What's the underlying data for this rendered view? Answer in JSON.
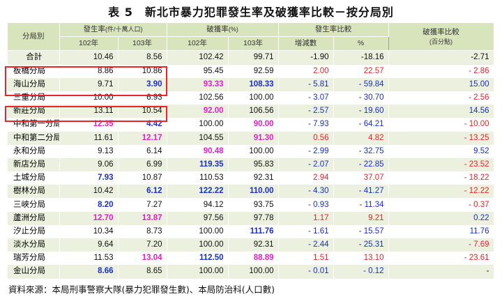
{
  "title": "表 5　新北市暴力犯罪發生率及破獲率比較－按分局別",
  "header": {
    "branch": "分局別",
    "occurrence": "發生率",
    "occurrence_unit": "(件/十萬人口)",
    "clearance": "破獲率",
    "clearance_unit": "(%)",
    "occ_compare": "發生率比較",
    "clear_compare": "破獲率比較",
    "clear_compare_unit": "(百分點)",
    "y102": "102年",
    "y103": "103年",
    "diff": "增減數",
    "pct": "%"
  },
  "colors": {
    "black": "#111111",
    "red": "#e8232a",
    "blue": "#1a2ec8",
    "magenta": "#e61ec8"
  },
  "rows": [
    {
      "name": "合計",
      "o102": "10.46",
      "o102c": "k",
      "o103": "8.56",
      "o103c": "k",
      "c102": "102.42",
      "c102c": "k",
      "c103": "99.71",
      "c103c": "k",
      "d": "-1.90",
      "dc": "k",
      "p": "-18.16",
      "pc": "k",
      "cc": "-2.71",
      "ccc": "k"
    },
    {
      "name": "板橋分局",
      "o102": "8.86",
      "o102c": "k",
      "o103": "10.86",
      "o103c": "k",
      "c102": "95.45",
      "c102c": "k",
      "c103": "92.59",
      "c103c": "k",
      "d": "2.00",
      "dc": "r",
      "p": "22.57",
      "pc": "r",
      "cc": "- 2.86",
      "ccc": "r"
    },
    {
      "name": "海山分局",
      "o102": "9.71",
      "o102c": "k",
      "o103": "3.90",
      "o103c": "b",
      "c102": "93.33",
      "c102c": "m",
      "c103": "108.33",
      "c103c": "b",
      "d": "- 5.81",
      "dc": "b",
      "p": "- 59.84",
      "pc": "b",
      "cc": "15.00",
      "ccc": "b"
    },
    {
      "name": "三重分局",
      "o102": "10.00",
      "o102c": "k",
      "o103": "6.93",
      "o103c": "k",
      "c102": "102.56",
      "c102c": "k",
      "c103": "100.00",
      "c103c": "k",
      "d": "- 3.07",
      "dc": "b",
      "p": "- 30.70",
      "pc": "b",
      "cc": "- 2.56",
      "ccc": "r"
    },
    {
      "name": "新莊分局",
      "o102": "13.11",
      "o102c": "k",
      "o103": "10.54",
      "o103c": "k",
      "c102": "92.00",
      "c102c": "m",
      "c103": "106.56",
      "c103c": "k",
      "d": "- 2.57",
      "dc": "b",
      "p": "- 19.60",
      "pc": "b",
      "cc": "14.56",
      "ccc": "b"
    },
    {
      "name": "中和第一分局",
      "o102": "12.35",
      "o102c": "m",
      "o103": "4.42",
      "o103c": "b",
      "c102": "100.00",
      "c102c": "k",
      "c103": "90.00",
      "c103c": "m",
      "d": "- 7.93",
      "dc": "b",
      "p": "- 64.21",
      "pc": "b",
      "cc": "- 10.00",
      "ccc": "r"
    },
    {
      "name": "中和第二分局",
      "o102": "11.61",
      "o102c": "k",
      "o103": "12.17",
      "o103c": "m",
      "c102": "104.55",
      "c102c": "k",
      "c103": "91.30",
      "c103c": "m",
      "d": "0.56",
      "dc": "r",
      "p": "4.82",
      "pc": "r",
      "cc": "- 13.25",
      "ccc": "r"
    },
    {
      "name": "永和分局",
      "o102": "9.13",
      "o102c": "k",
      "o103": "6.14",
      "o103c": "k",
      "c102": "90.48",
      "c102c": "m",
      "c103": "100.00",
      "c103c": "k",
      "d": "- 2.99",
      "dc": "b",
      "p": "- 32.75",
      "pc": "b",
      "cc": "9.52",
      "ccc": "b"
    },
    {
      "name": "新店分局",
      "o102": "9.06",
      "o102c": "k",
      "o103": "6.99",
      "o103c": "k",
      "c102": "119.35",
      "c102c": "b",
      "c103": "95.83",
      "c103c": "k",
      "d": "- 2.07",
      "dc": "b",
      "p": "- 22.85",
      "pc": "b",
      "cc": "- 23.52",
      "ccc": "r"
    },
    {
      "name": "土城分局",
      "o102": "7.93",
      "o102c": "b",
      "o103": "10.87",
      "o103c": "k",
      "c102": "110.53",
      "c102c": "k",
      "c103": "92.31",
      "c103c": "k",
      "d": "2.94",
      "dc": "r",
      "p": "37.07",
      "pc": "r",
      "cc": "- 18.22",
      "ccc": "r"
    },
    {
      "name": "樹林分局",
      "o102": "10.42",
      "o102c": "k",
      "o103": "6.12",
      "o103c": "b",
      "c102": "122.22",
      "c102c": "b",
      "c103": "110.00",
      "c103c": "b",
      "d": "- 4.30",
      "dc": "b",
      "p": "- 41.27",
      "pc": "b",
      "cc": "- 12.22",
      "ccc": "r"
    },
    {
      "name": "三峽分局",
      "o102": "8.20",
      "o102c": "b",
      "o103": "7.27",
      "o103c": "k",
      "c102": "94.12",
      "c102c": "k",
      "c103": "93.75",
      "c103c": "k",
      "d": "- 0.93",
      "dc": "b",
      "p": "- 11.34",
      "pc": "b",
      "cc": "- 0.37",
      "ccc": "r"
    },
    {
      "name": "蘆洲分局",
      "o102": "12.70",
      "o102c": "m",
      "o103": "13.87",
      "o103c": "m",
      "c102": "97.56",
      "c102c": "k",
      "c103": "97.78",
      "c103c": "k",
      "d": "1.17",
      "dc": "r",
      "p": "9.21",
      "pc": "r",
      "cc": "0.22",
      "ccc": "b"
    },
    {
      "name": "汐止分局",
      "o102": "10.34",
      "o102c": "k",
      "o103": "8.73",
      "o103c": "k",
      "c102": "100.00",
      "c102c": "k",
      "c103": "111.76",
      "c103c": "b",
      "d": "- 1.61",
      "dc": "b",
      "p": "- 15.57",
      "pc": "b",
      "cc": "11.76",
      "ccc": "b"
    },
    {
      "name": "淡水分局",
      "o102": "9.64",
      "o102c": "k",
      "o103": "7.20",
      "o103c": "k",
      "c102": "100.00",
      "c102c": "k",
      "c103": "92.31",
      "c103c": "k",
      "d": "- 2.44",
      "dc": "b",
      "p": "- 25.31",
      "pc": "b",
      "cc": "- 7.69",
      "ccc": "r"
    },
    {
      "name": "瑞芳分局",
      "o102": "11.53",
      "o102c": "k",
      "o103": "13.04",
      "o103c": "m",
      "c102": "112.50",
      "c102c": "b",
      "c103": "88.89",
      "c103c": "m",
      "d": "1.51",
      "dc": "r",
      "p": "13.10",
      "pc": "r",
      "cc": "- 23.61",
      "ccc": "r"
    },
    {
      "name": "金山分局",
      "o102": "8.66",
      "o102c": "b",
      "o103": "8.65",
      "o103c": "k",
      "c102": "100.00",
      "c102c": "k",
      "c103": "100.00",
      "c103c": "k",
      "d": "- 0.01",
      "dc": "b",
      "p": "- 0.12",
      "pc": "b",
      "cc": "-",
      "ccc": "k"
    }
  ],
  "footer": "資料來源：本局刑事警察大隊(暴力犯罪發生數)、本局防治科(人口數)"
}
